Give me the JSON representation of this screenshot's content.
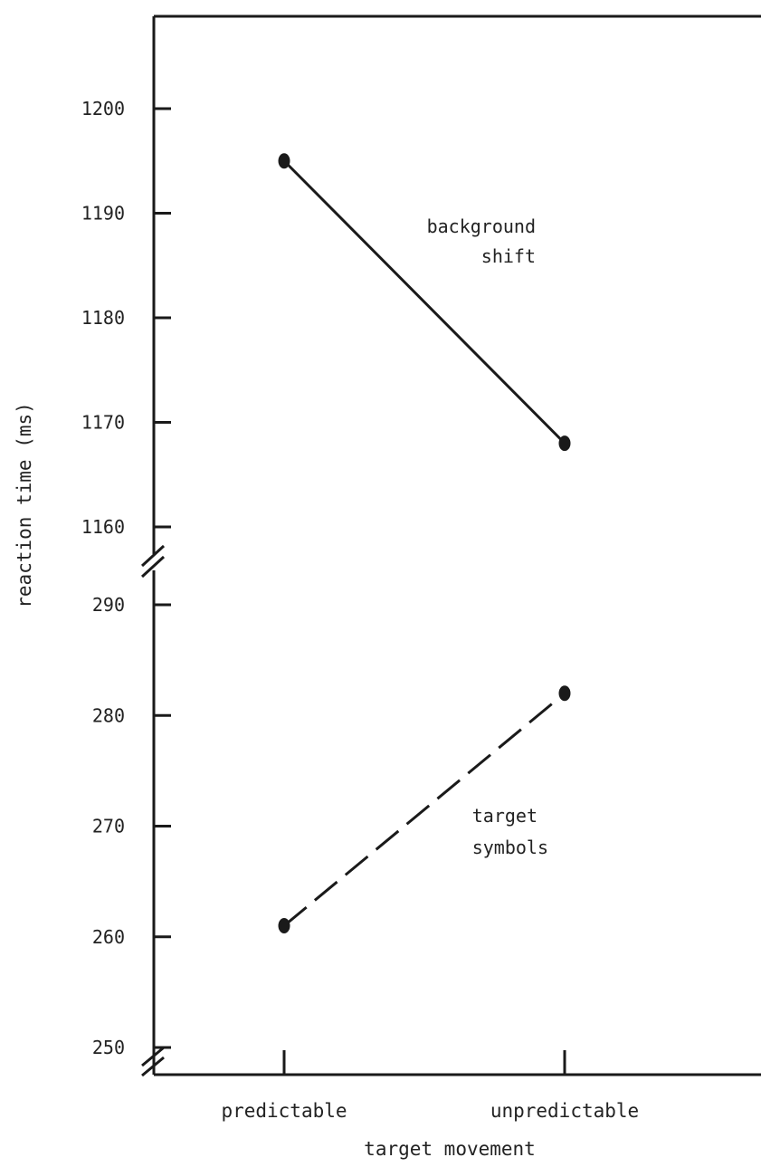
{
  "chart_data": {
    "type": "line",
    "title": "",
    "xlabel": "target movement",
    "ylabel": "reaction time (ms)",
    "categories": [
      "predictable",
      "unpredictable"
    ],
    "y_axis_broken": true,
    "y_segments": [
      {
        "ticks": [
          1160,
          1170,
          1180,
          1190,
          1200
        ],
        "range": [
          1156,
          1210
        ]
      },
      {
        "ticks": [
          250,
          260,
          270,
          280,
          290
        ],
        "range": [
          246,
          293
        ]
      }
    ],
    "series": [
      {
        "name": "background shift",
        "values": [
          1195,
          1168
        ],
        "line_style": "solid"
      },
      {
        "name": "target symbols",
        "values": [
          261,
          282
        ],
        "line_style": "dashed"
      }
    ],
    "grid": false,
    "legend": "inline labels"
  }
}
